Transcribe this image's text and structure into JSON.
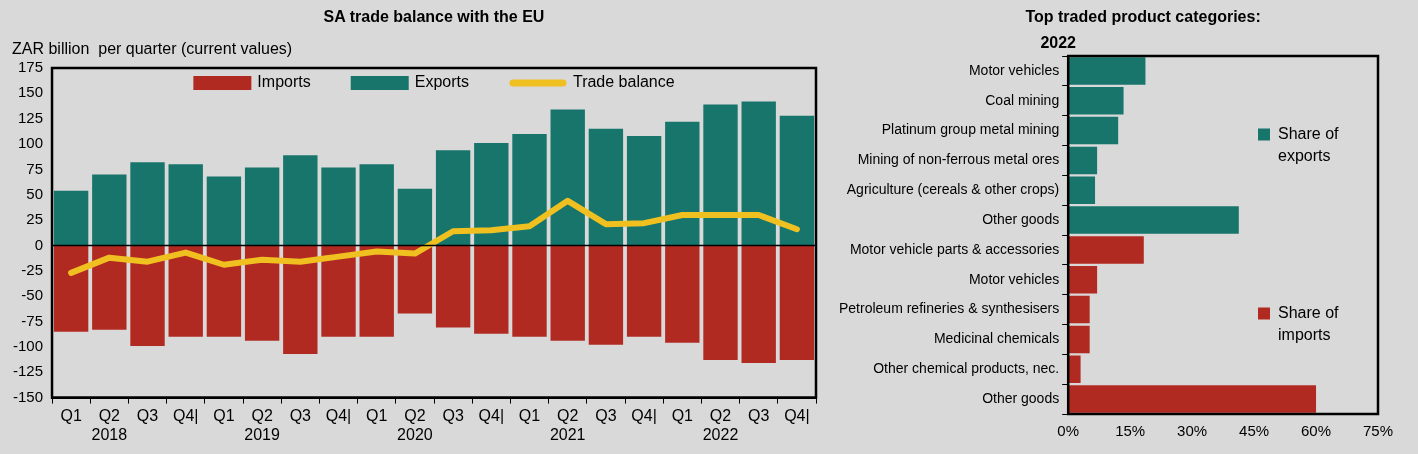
{
  "chart_data": [
    {
      "type": "bar",
      "title": "SA trade balance with the EU",
      "ylabel": "ZAR billion  per quarter (current values)",
      "categories": [
        "Q1",
        "Q2\n2018",
        "Q3",
        "Q4|",
        "Q1",
        "Q2\n2019",
        "Q3",
        "Q4|",
        "Q1",
        "Q2\n2020",
        "Q3",
        "Q4|",
        "Q1",
        "Q2\n2021",
        "Q3",
        "Q4|",
        "Q1",
        "Q2\n2022",
        "Q3",
        "Q4|"
      ],
      "series": [
        {
          "name": "Imports",
          "color": "#b02a22",
          "values": [
            -85,
            -83,
            -99,
            -90,
            -90,
            -94,
            -107,
            -90,
            -90,
            -67,
            -81,
            -87,
            -90,
            -94,
            -98,
            -90,
            -96,
            -113,
            -116,
            -113
          ]
        },
        {
          "name": "Exports",
          "color": "#17756b",
          "values": [
            54,
            70,
            82,
            80,
            68,
            77,
            89,
            77,
            80,
            56,
            94,
            101,
            110,
            134,
            115,
            108,
            122,
            139,
            142,
            128
          ]
        },
        {
          "name": "Trade balance",
          "type": "line",
          "color": "#f0c020",
          "values": [
            -27,
            -12,
            -16,
            -7,
            -19,
            -14,
            -16,
            -11,
            -6,
            -8,
            14,
            15,
            19,
            44,
            21,
            22,
            30,
            30,
            30,
            16
          ]
        }
      ],
      "stacked": true,
      "ylim": [
        -150,
        175
      ],
      "yticks": [
        -150,
        -125,
        -100,
        -75,
        -50,
        -25,
        0,
        25,
        50,
        75,
        100,
        125,
        150,
        175
      ],
      "legend": "top"
    },
    {
      "type": "bar",
      "orientation": "horizontal",
      "title": "Top traded product categories:\n2022",
      "categories": [
        "Motor vehicles",
        "Coal mining",
        "Platinum group metal mining",
        "Mining of non-ferrous metal ores",
        "Agriculture (cereals & other crops)",
        "Other goods",
        "Motor vehicle parts & accessories",
        "Motor vehicles",
        "Petroleum refineries & synthesisers",
        "Medicinal chemicals",
        "Other chemical products, nec.",
        "Other goods"
      ],
      "series": [
        {
          "name": "Share of exports",
          "color": "#17756b",
          "values": [
            18.7,
            13.4,
            12.1,
            7,
            6.5,
            41.3,
            null,
            null,
            null,
            null,
            null,
            null
          ]
        },
        {
          "name": "Share of imports",
          "color": "#b02a22",
          "values": [
            null,
            null,
            null,
            null,
            null,
            null,
            18.3,
            7,
            5.2,
            5.2,
            3,
            60
          ]
        }
      ],
      "xlim": [
        0,
        75
      ],
      "xticks": [
        {
          "value": 0,
          "label": "0%"
        },
        {
          "value": 15,
          "label": "15%"
        },
        {
          "value": 30,
          "label": "30%"
        },
        {
          "value": 45,
          "label": "45%"
        },
        {
          "value": 60,
          "label": "60%"
        },
        {
          "value": 75,
          "label": "75%"
        }
      ],
      "legend": "right"
    }
  ]
}
